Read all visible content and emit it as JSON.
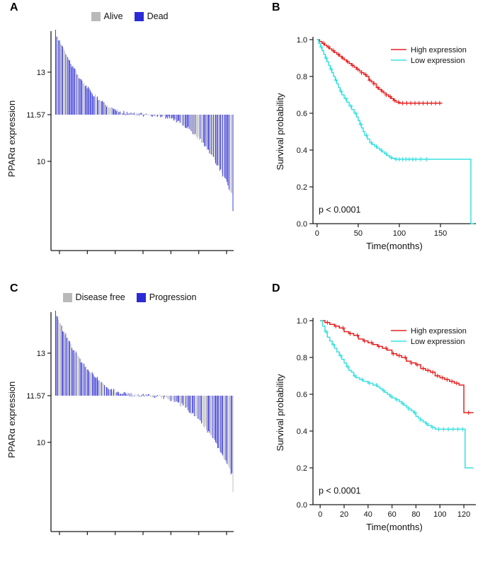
{
  "chart_data": [
    {
      "panel_label": "A",
      "type": "bar",
      "subtype": "waterfall",
      "legend": [
        {
          "label": "Alive",
          "color": "#b9b9b9"
        },
        {
          "label": "Dead",
          "color": "#2b2bd5"
        }
      ],
      "ylabel": "PPARα expression",
      "baseline": 11.57,
      "yticks": [
        {
          "value": 13,
          "label": "13"
        },
        {
          "value": 11.57,
          "label": "11.57"
        },
        {
          "value": 10,
          "label": "10"
        }
      ],
      "bars": {
        "n": 175,
        "amplitude": 2.75,
        "shape_exponent": 2.5,
        "noise": 0.14,
        "seed": 20177,
        "gray_fraction": 0.4,
        "value_range": [
          8.3,
          14.4
        ]
      },
      "x_axis_ticks": 7
    },
    {
      "panel_label": "B",
      "type": "line",
      "subtype": "kaplan_meier",
      "ylabel": "Survival probability",
      "xlabel": "Time(months)",
      "xlim": [
        -5,
        193
      ],
      "ylim": [
        0,
        1
      ],
      "xticks": [
        {
          "value": 0,
          "label": "0"
        },
        {
          "value": 50,
          "label": "50"
        },
        {
          "value": 100,
          "label": "100"
        },
        {
          "value": 150,
          "label": "150"
        }
      ],
      "yticks": [
        {
          "value": 0,
          "label": "0.0"
        },
        {
          "value": 0.2,
          "label": "0.2"
        },
        {
          "value": 0.4,
          "label": "0.4"
        },
        {
          "value": 0.6,
          "label": "0.6"
        },
        {
          "value": 0.8,
          "label": "0.8"
        },
        {
          "value": 1,
          "label": "1.0"
        }
      ],
      "pvalue": "p < 0.0001",
      "series": [
        {
          "name": "High expression",
          "color": "#e62020",
          "steps": [
            [
              0,
              1.0
            ],
            [
              3,
              0.99
            ],
            [
              6,
              0.98
            ],
            [
              9,
              0.97
            ],
            [
              12,
              0.96
            ],
            [
              15,
              0.95
            ],
            [
              18,
              0.94
            ],
            [
              21,
              0.93
            ],
            [
              24,
              0.92
            ],
            [
              27,
              0.91
            ],
            [
              30,
              0.9
            ],
            [
              33,
              0.89
            ],
            [
              36,
              0.88
            ],
            [
              39,
              0.87
            ],
            [
              42,
              0.86
            ],
            [
              45,
              0.85
            ],
            [
              48,
              0.84
            ],
            [
              51,
              0.83
            ],
            [
              54,
              0.82
            ],
            [
              57,
              0.81
            ],
            [
              60,
              0.8
            ],
            [
              63,
              0.78
            ],
            [
              66,
              0.77
            ],
            [
              69,
              0.76
            ],
            [
              72,
              0.74
            ],
            [
              75,
              0.73
            ],
            [
              78,
              0.72
            ],
            [
              81,
              0.71
            ],
            [
              84,
              0.7
            ],
            [
              87,
              0.69
            ],
            [
              90,
              0.68
            ],
            [
              93,
              0.67
            ],
            [
              96,
              0.66
            ],
            [
              100,
              0.655
            ],
            [
              152,
              0.655
            ]
          ],
          "censors": [
            8,
            14,
            20,
            26,
            31,
            37,
            43,
            49,
            54,
            59,
            64,
            69,
            74,
            79,
            84,
            89,
            94,
            99,
            104,
            109,
            114,
            119,
            124,
            129,
            134,
            139,
            144,
            149
          ]
        },
        {
          "name": "Low expression",
          "color": "#3ae0e0",
          "steps": [
            [
              0,
              1.0
            ],
            [
              2,
              0.98
            ],
            [
              4,
              0.96
            ],
            [
              6,
              0.94
            ],
            [
              8,
              0.92
            ],
            [
              10,
              0.9
            ],
            [
              12,
              0.88
            ],
            [
              14,
              0.86
            ],
            [
              16,
              0.84
            ],
            [
              18,
              0.82
            ],
            [
              20,
              0.8
            ],
            [
              22,
              0.78
            ],
            [
              24,
              0.76
            ],
            [
              26,
              0.74
            ],
            [
              28,
              0.72
            ],
            [
              30,
              0.7
            ],
            [
              33,
              0.68
            ],
            [
              36,
              0.66
            ],
            [
              39,
              0.64
            ],
            [
              42,
              0.62
            ],
            [
              45,
              0.6
            ],
            [
              48,
              0.58
            ],
            [
              50,
              0.56
            ],
            [
              52,
              0.54
            ],
            [
              54,
              0.52
            ],
            [
              56,
              0.5
            ],
            [
              58,
              0.48
            ],
            [
              61,
              0.46
            ],
            [
              64,
              0.44
            ],
            [
              67,
              0.43
            ],
            [
              70,
              0.42
            ],
            [
              73,
              0.41
            ],
            [
              76,
              0.4
            ],
            [
              79,
              0.39
            ],
            [
              82,
              0.38
            ],
            [
              85,
              0.37
            ],
            [
              88,
              0.36
            ],
            [
              91,
              0.355
            ],
            [
              95,
              0.35
            ],
            [
              187,
              0.0
            ],
            [
              191,
              0.0
            ]
          ],
          "censors": [
            5,
            11,
            17,
            23,
            29,
            35,
            41,
            47,
            53,
            60,
            66,
            72,
            78,
            84,
            90,
            96,
            100,
            104,
            108,
            112,
            116,
            120,
            126,
            133
          ]
        }
      ]
    },
    {
      "panel_label": "C",
      "type": "bar",
      "subtype": "waterfall",
      "legend": [
        {
          "label": "Disease free",
          "color": "#b9b9b9"
        },
        {
          "label": "Progression",
          "color": "#2b2bd5"
        }
      ],
      "ylabel": "PPARα expression",
      "baseline": 11.57,
      "yticks": [
        {
          "value": 13,
          "label": "13"
        },
        {
          "value": 11.57,
          "label": "11.57"
        },
        {
          "value": 10,
          "label": "10"
        }
      ],
      "bars": {
        "n": 175,
        "amplitude": 2.75,
        "shape_exponent": 2.5,
        "noise": 0.14,
        "seed": 8891,
        "gray_fraction": 0.42,
        "value_range": [
          8.3,
          14.4
        ]
      },
      "x_axis_ticks": 7
    },
    {
      "panel_label": "D",
      "type": "line",
      "subtype": "kaplan_meier",
      "ylabel": "Survival probability",
      "xlabel": "Time(months)",
      "xlim": [
        -6,
        130
      ],
      "ylim": [
        0,
        1
      ],
      "xticks": [
        {
          "value": 0,
          "label": "0"
        },
        {
          "value": 20,
          "label": "20"
        },
        {
          "value": 40,
          "label": "40"
        },
        {
          "value": 60,
          "label": "60"
        },
        {
          "value": 80,
          "label": "80"
        },
        {
          "value": 100,
          "label": "100"
        },
        {
          "value": 120,
          "label": "120"
        }
      ],
      "yticks": [
        {
          "value": 0,
          "label": "0.0"
        },
        {
          "value": 0.2,
          "label": "0.2"
        },
        {
          "value": 0.4,
          "label": "0.4"
        },
        {
          "value": 0.6,
          "label": "0.6"
        },
        {
          "value": 0.8,
          "label": "0.8"
        },
        {
          "value": 1,
          "label": "1.0"
        }
      ],
      "pvalue": "p < 0.0001",
      "series": [
        {
          "name": "High expression",
          "color": "#e62020",
          "steps": [
            [
              0,
              1.0
            ],
            [
              4,
              0.99
            ],
            [
              8,
              0.98
            ],
            [
              12,
              0.97
            ],
            [
              16,
              0.96
            ],
            [
              20,
              0.94
            ],
            [
              24,
              0.93
            ],
            [
              28,
              0.92
            ],
            [
              32,
              0.9
            ],
            [
              36,
              0.89
            ],
            [
              40,
              0.88
            ],
            [
              44,
              0.87
            ],
            [
              48,
              0.86
            ],
            [
              52,
              0.85
            ],
            [
              56,
              0.84
            ],
            [
              60,
              0.82
            ],
            [
              64,
              0.81
            ],
            [
              68,
              0.8
            ],
            [
              72,
              0.78
            ],
            [
              76,
              0.77
            ],
            [
              80,
              0.76
            ],
            [
              84,
              0.74
            ],
            [
              88,
              0.73
            ],
            [
              92,
              0.72
            ],
            [
              96,
              0.7
            ],
            [
              100,
              0.69
            ],
            [
              104,
              0.68
            ],
            [
              108,
              0.67
            ],
            [
              112,
              0.66
            ],
            [
              116,
              0.65
            ],
            [
              120,
              0.5
            ],
            [
              128,
              0.5
            ]
          ],
          "censors": [
            6,
            13,
            19,
            25,
            31,
            37,
            43,
            49,
            55,
            61,
            66,
            71,
            76,
            81,
            86,
            90,
            94,
            98,
            102,
            106,
            110,
            114,
            124
          ]
        },
        {
          "name": "Low expression",
          "color": "#3ae0e0",
          "steps": [
            [
              0,
              1.0
            ],
            [
              2,
              0.97
            ],
            [
              4,
              0.94
            ],
            [
              6,
              0.91
            ],
            [
              8,
              0.89
            ],
            [
              10,
              0.87
            ],
            [
              12,
              0.85
            ],
            [
              14,
              0.83
            ],
            [
              16,
              0.81
            ],
            [
              18,
              0.79
            ],
            [
              20,
              0.77
            ],
            [
              22,
              0.75
            ],
            [
              24,
              0.73
            ],
            [
              26,
              0.72
            ],
            [
              28,
              0.7
            ],
            [
              30,
              0.69
            ],
            [
              33,
              0.68
            ],
            [
              36,
              0.67
            ],
            [
              40,
              0.66
            ],
            [
              44,
              0.65
            ],
            [
              48,
              0.64
            ],
            [
              50,
              0.63
            ],
            [
              52,
              0.62
            ],
            [
              54,
              0.61
            ],
            [
              56,
              0.6
            ],
            [
              58,
              0.59
            ],
            [
              60,
              0.58
            ],
            [
              63,
              0.57
            ],
            [
              66,
              0.56
            ],
            [
              68,
              0.55
            ],
            [
              70,
              0.54
            ],
            [
              72,
              0.53
            ],
            [
              74,
              0.52
            ],
            [
              76,
              0.51
            ],
            [
              78,
              0.5
            ],
            [
              80,
              0.48
            ],
            [
              82,
              0.47
            ],
            [
              84,
              0.46
            ],
            [
              86,
              0.45
            ],
            [
              88,
              0.44
            ],
            [
              90,
              0.43
            ],
            [
              93,
              0.42
            ],
            [
              96,
              0.41
            ],
            [
              121,
              0.2
            ],
            [
              128,
              0.2
            ]
          ],
          "censors": [
            5,
            11,
            17,
            23,
            29,
            35,
            41,
            47,
            53,
            59,
            64,
            69,
            74,
            79,
            84,
            89,
            94,
            99,
            103,
            107,
            111,
            115,
            119
          ]
        }
      ]
    }
  ]
}
